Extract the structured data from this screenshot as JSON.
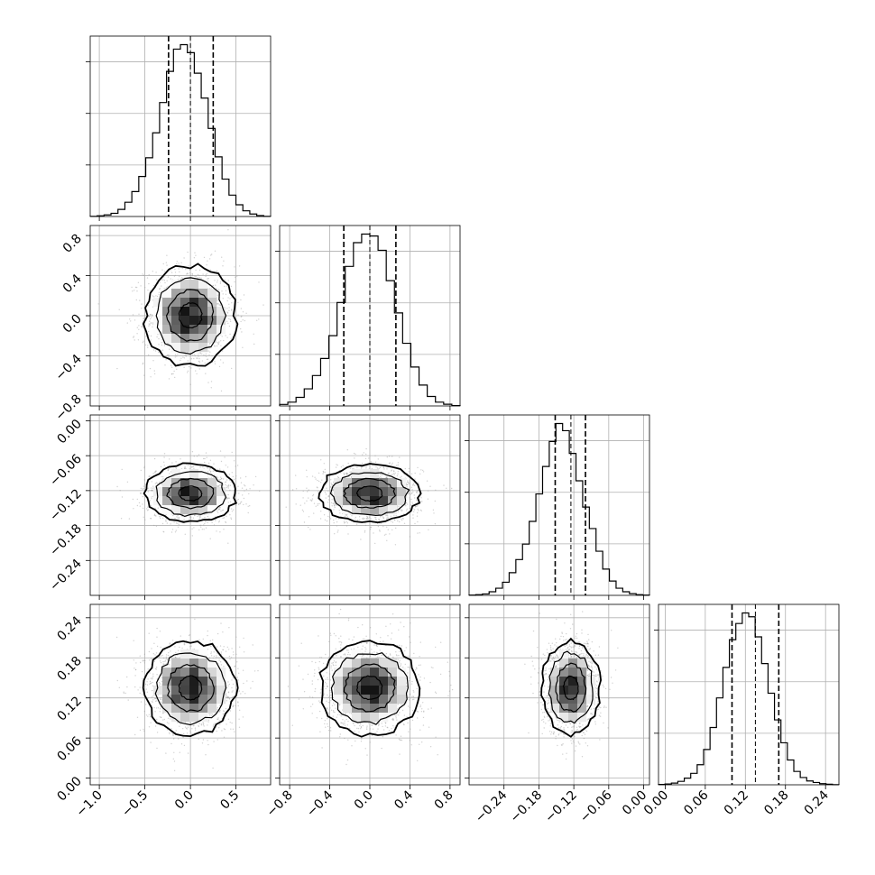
{
  "chart_data": {
    "type": "corner",
    "title": "",
    "grid": true,
    "colors": {
      "line": "#000000",
      "grid": "#b0b0b0",
      "scatter": "#9a9a9a"
    },
    "parameters": [
      {
        "mean": 0.0,
        "std": 0.25,
        "range": [
          -1.1,
          0.88
        ],
        "quantiles": [
          -0.24,
          0.0,
          0.25
        ],
        "ticks": [
          -1.0,
          -0.5,
          0.0,
          0.5
        ],
        "tick_labels": [
          "−1.0",
          "−0.5",
          "0.0",
          "0.5"
        ]
      },
      {
        "mean": 0.0,
        "std": 0.25,
        "range": [
          -0.9,
          0.9
        ],
        "quantiles": [
          -0.26,
          0.0,
          0.26
        ],
        "ticks": [
          -0.8,
          -0.4,
          0.0,
          0.4,
          0.8
        ],
        "tick_labels": [
          "−0.8",
          "−0.4",
          "0.0",
          "0.4",
          "0.8"
        ]
      },
      {
        "mean": -0.125,
        "std": 0.025,
        "range": [
          -0.3,
          0.01
        ],
        "quantiles": [
          -0.152,
          -0.125,
          -0.1
        ],
        "ticks": [
          -0.24,
          -0.18,
          -0.12,
          -0.06,
          0.0
        ],
        "tick_labels": [
          "−0.24",
          "−0.18",
          "−0.12",
          "−0.06",
          "0.00"
        ]
      },
      {
        "mean": 0.135,
        "std": 0.035,
        "range": [
          -0.01,
          0.26
        ],
        "quantiles": [
          0.1,
          0.135,
          0.17
        ],
        "ticks": [
          0.0,
          0.06,
          0.12,
          0.18,
          0.24
        ],
        "tick_labels": [
          "0.00",
          "0.06",
          "0.12",
          "0.18",
          "0.24"
        ]
      }
    ],
    "histograms": [
      {
        "param": 0,
        "counts": [
          1,
          4,
          9,
          18,
          40,
          80,
          140,
          225,
          330,
          470,
          640,
          815,
          940,
          965,
          920,
          805,
          665,
          495,
          335,
          210,
          120,
          66,
          32,
          14,
          5,
          1
        ]
      },
      {
        "param": 1,
        "counts": [
          8,
          20,
          45,
          90,
          160,
          250,
          370,
          545,
          735,
          860,
          905,
          895,
          820,
          660,
          490,
          330,
          205,
          110,
          50,
          20,
          9,
          2
        ]
      },
      {
        "param": 2,
        "counts": [
          1,
          3,
          6,
          15,
          30,
          55,
          95,
          150,
          215,
          310,
          425,
          540,
          645,
          720,
          690,
          595,
          480,
          370,
          280,
          185,
          110,
          60,
          30,
          15,
          7,
          3,
          1
        ]
      },
      {
        "param": 3,
        "counts": [
          2,
          4,
          9,
          18,
          35,
          60,
          105,
          185,
          300,
          455,
          615,
          760,
          845,
          900,
          880,
          775,
          635,
          480,
          340,
          220,
          130,
          70,
          38,
          20,
          12,
          6,
          3,
          1
        ]
      }
    ],
    "pairs": [
      {
        "row": 1,
        "col": 0,
        "x_param": 0,
        "y_param": 1
      },
      {
        "row": 2,
        "col": 0,
        "x_param": 0,
        "y_param": 2
      },
      {
        "row": 2,
        "col": 1,
        "x_param": 1,
        "y_param": 2
      },
      {
        "row": 3,
        "col": 0,
        "x_param": 0,
        "y_param": 3
      },
      {
        "row": 3,
        "col": 1,
        "x_param": 1,
        "y_param": 3
      },
      {
        "row": 3,
        "col": 2,
        "x_param": 2,
        "y_param": 3
      }
    ],
    "contour_levels_sigma": [
      0.5,
      1.0,
      1.5,
      2.0
    ]
  }
}
